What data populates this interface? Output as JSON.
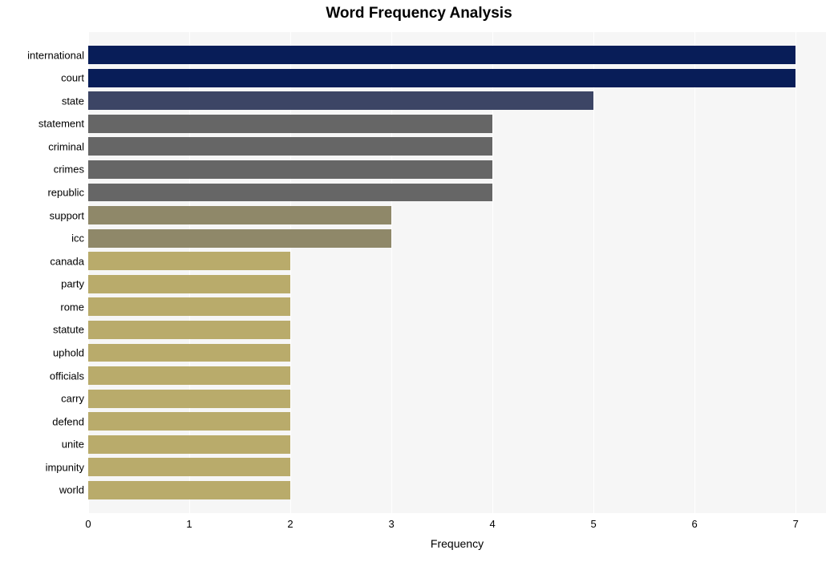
{
  "chart": {
    "type": "bar-horizontal",
    "title": "Word Frequency Analysis",
    "title_fontsize": 19,
    "title_fontweight": "bold",
    "xlabel": "Frequency",
    "label_fontsize": 14,
    "tick_fontsize": 13,
    "background_color": "#ffffff",
    "plot_background_color": "#f6f6f6",
    "grid_color": "#ffffff",
    "xlim": [
      0,
      7.3
    ],
    "xtick_step": 1,
    "xticks": [
      0,
      1,
      2,
      3,
      4,
      5,
      6,
      7
    ],
    "bar_rel_height": 0.8,
    "categories": [
      "international",
      "court",
      "state",
      "statement",
      "criminal",
      "crimes",
      "republic",
      "support",
      "icc",
      "canada",
      "party",
      "rome",
      "statute",
      "uphold",
      "officials",
      "carry",
      "defend",
      "unite",
      "impunity",
      "world"
    ],
    "values": [
      7,
      7,
      5,
      4,
      4,
      4,
      4,
      3,
      3,
      2,
      2,
      2,
      2,
      2,
      2,
      2,
      2,
      2,
      2,
      2
    ],
    "bar_colors": [
      "#081d58",
      "#081d58",
      "#3c4565",
      "#666666",
      "#666666",
      "#666666",
      "#666666",
      "#8f8869",
      "#8f8869",
      "#b9ab6b",
      "#b9ab6b",
      "#b9ab6b",
      "#b9ab6b",
      "#b9ab6b",
      "#b9ab6b",
      "#b9ab6b",
      "#b9ab6b",
      "#b9ab6b",
      "#b9ab6b",
      "#b9ab6b"
    ]
  }
}
